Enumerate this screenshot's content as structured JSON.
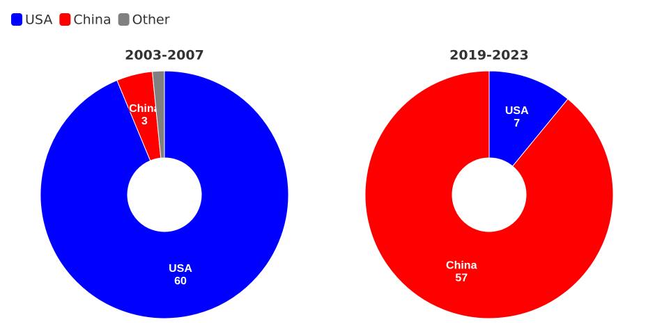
{
  "chart_data": [
    {
      "type": "pie",
      "title": "2003-2007",
      "categories": [
        "USA",
        "China",
        "Other"
      ],
      "values": [
        60,
        3,
        1
      ],
      "colors": [
        "#0000ff",
        "#ff0000",
        "#808080"
      ]
    },
    {
      "type": "pie",
      "title": "2019-2023",
      "categories": [
        "USA",
        "China"
      ],
      "values": [
        7,
        57
      ],
      "colors": [
        "#0000ff",
        "#ff0000"
      ]
    }
  ]
}
